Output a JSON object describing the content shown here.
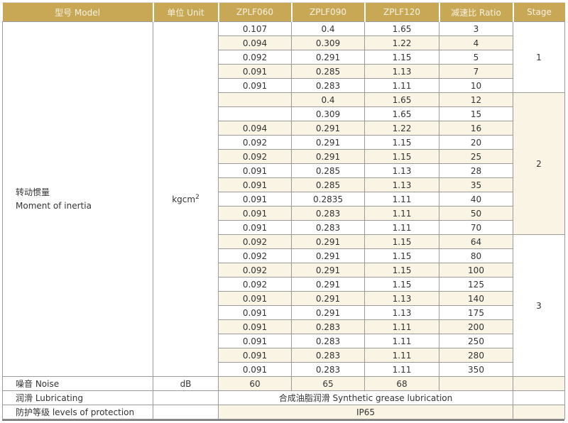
{
  "table": {
    "headers": [
      {
        "label": "型号 Model"
      },
      {
        "label": "单位 Unit"
      },
      {
        "label": "ZPLF060"
      },
      {
        "label": "ZPLF090"
      },
      {
        "label": "ZPLF120"
      },
      {
        "label": "减速比 Ratio"
      },
      {
        "label": "Stage"
      }
    ],
    "inertia": {
      "label_zh": "转动惯量",
      "label_en": "Moment of inertia",
      "unit_base": "kgcm",
      "unit_exp": "2",
      "rows": [
        {
          "zplf060": "0.107",
          "zplf090": "0.4",
          "zplf120": "1.65",
          "ratio": "3"
        },
        {
          "zplf060": "0.094",
          "zplf090": "0.309",
          "zplf120": "1.22",
          "ratio": "4"
        },
        {
          "zplf060": "0.092",
          "zplf090": "0.291",
          "zplf120": "1.15",
          "ratio": "5"
        },
        {
          "zplf060": "0.091",
          "zplf090": "0.285",
          "zplf120": "1.13",
          "ratio": "7"
        },
        {
          "zplf060": "0.091",
          "zplf090": "0.283",
          "zplf120": "1.11",
          "ratio": "10"
        },
        {
          "zplf060": "",
          "zplf090": "0.4",
          "zplf120": "1.65",
          "ratio": "12"
        },
        {
          "zplf060": "",
          "zplf090": "0.309",
          "zplf120": "1.65",
          "ratio": "15"
        },
        {
          "zplf060": "0.094",
          "zplf090": "0.291",
          "zplf120": "1.22",
          "ratio": "16"
        },
        {
          "zplf060": "0.092",
          "zplf090": "0.291",
          "zplf120": "1.15",
          "ratio": "20"
        },
        {
          "zplf060": "0.092",
          "zplf090": "0.291",
          "zplf120": "1.15",
          "ratio": "25"
        },
        {
          "zplf060": "0.091",
          "zplf090": "0.285",
          "zplf120": "1.13",
          "ratio": "28"
        },
        {
          "zplf060": "0.091",
          "zplf090": "0.285",
          "zplf120": "1.13",
          "ratio": "35"
        },
        {
          "zplf060": "0.091",
          "zplf090": "0.2835",
          "zplf120": "1.11",
          "ratio": "40"
        },
        {
          "zplf060": "0.091",
          "zplf090": "0.283",
          "zplf120": "1.11",
          "ratio": "50"
        },
        {
          "zplf060": "0.091",
          "zplf090": "0.283",
          "zplf120": "1.11",
          "ratio": "70"
        },
        {
          "zplf060": "0.092",
          "zplf090": "0.291",
          "zplf120": "1.15",
          "ratio": "64"
        },
        {
          "zplf060": "0.092",
          "zplf090": "0.291",
          "zplf120": "1.15",
          "ratio": "80"
        },
        {
          "zplf060": "0.092",
          "zplf090": "0.291",
          "zplf120": "1.15",
          "ratio": "100"
        },
        {
          "zplf060": "0.092",
          "zplf090": "0.291",
          "zplf120": "1.15",
          "ratio": "125"
        },
        {
          "zplf060": "0.091",
          "zplf090": "0.291",
          "zplf120": "1.13",
          "ratio": "140"
        },
        {
          "zplf060": "0.091",
          "zplf090": "0.291",
          "zplf120": "1.13",
          "ratio": "175"
        },
        {
          "zplf060": "0.091",
          "zplf090": "0.283",
          "zplf120": "1.11",
          "ratio": "200"
        },
        {
          "zplf060": "0.091",
          "zplf090": "0.283",
          "zplf120": "1.11",
          "ratio": "250"
        },
        {
          "zplf060": "0.091",
          "zplf090": "0.283",
          "zplf120": "1.11",
          "ratio": "280"
        },
        {
          "zplf060": "0.091",
          "zplf090": "0.283",
          "zplf120": "1.11",
          "ratio": "350"
        }
      ],
      "stages": [
        {
          "label": "1",
          "start": 0,
          "span": 5,
          "shaded": false
        },
        {
          "label": "2",
          "start": 5,
          "span": 10,
          "shaded": true
        },
        {
          "label": "3",
          "start": 15,
          "span": 10,
          "shaded": false
        }
      ]
    },
    "noise": {
      "label": "噪音 Noise",
      "unit": "dB",
      "zplf060": "60",
      "zplf090": "65",
      "zplf120": "68"
    },
    "lubricating": {
      "label": "润滑 Lubricating",
      "value": "合成油脂润滑 Synthetic grease lubrication"
    },
    "protection": {
      "label": "防护等级 levels of protection",
      "value": "IP65"
    }
  },
  "colors": {
    "header_bg": "#c8a755",
    "header_text": "#f6f2e2",
    "row_alt_bg": "#faf4e4",
    "grid_line": "#9a9a9a",
    "outer_bottom_border": "#7a7a77",
    "body_text": "#333333"
  }
}
